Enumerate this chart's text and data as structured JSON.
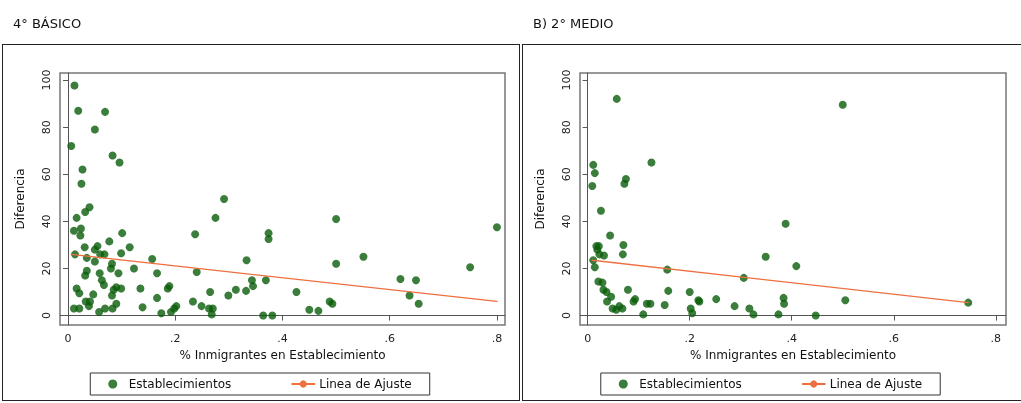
{
  "chart_data": [
    {
      "type": "scatter",
      "title": "4° BÁSICO",
      "xlabel": "% Inmigrantes en Establecimiento",
      "ylabel": "Diferencia",
      "xlim": [
        -0.015,
        0.815
      ],
      "ylim": [
        -4,
        103
      ],
      "xticks": [
        {
          "value": 0,
          "label": "0"
        },
        {
          "value": 0.2,
          "label": ".2"
        },
        {
          "value": 0.4,
          "label": ".4"
        },
        {
          "value": 0.6,
          "label": ".6"
        },
        {
          "value": 0.8,
          "label": ".8"
        }
      ],
      "yticks": [
        0,
        20,
        40,
        60,
        80,
        100
      ],
      "legend": "bottom",
      "marker": "circle",
      "series": [
        {
          "name": "Establecimientos",
          "color": "#0a5c0a",
          "x": [
            0.012,
            0.019,
            0.069,
            0.05,
            0.006,
            0.083,
            0.096,
            0.027,
            0.025,
            0.04,
            0.032,
            0.016,
            0.011,
            0.024,
            0.023,
            0.101,
            0.077,
            0.055,
            0.05,
            0.115,
            0.031,
            0.013,
            0.068,
            0.099,
            0.035,
            0.05,
            0.06,
            0.082,
            0.08,
            0.035,
            0.032,
            0.059,
            0.094,
            0.123,
            0.063,
            0.067,
            0.016,
            0.021,
            0.09,
            0.099,
            0.085,
            0.082,
            0.047,
            0.033,
            0.041,
            0.039,
            0.09,
            0.011,
            0.021,
            0.058,
            0.069,
            0.083,
            0.135,
            0.139,
            0.157,
            0.166,
            0.166,
            0.174,
            0.186,
            0.189,
            0.192,
            0.198,
            0.202,
            0.237,
            0.24,
            0.233,
            0.249,
            0.265,
            0.263,
            0.27,
            0.268,
            0.275,
            0.291,
            0.299,
            0.313,
            0.333,
            0.332,
            0.343,
            0.345,
            0.369,
            0.374,
            0.374,
            0.364,
            0.381,
            0.426,
            0.45,
            0.467,
            0.488,
            0.493,
            0.5,
            0.5,
            0.551,
            0.62,
            0.649,
            0.637,
            0.654,
            0.75,
            0.8
          ],
          "values": [
            97.7,
            87,
            86.5,
            79,
            72,
            68,
            65,
            62,
            56,
            46,
            44,
            41.5,
            36,
            37,
            34,
            35,
            31.5,
            29.5,
            28,
            29,
            29,
            26,
            26,
            26.5,
            24.5,
            23,
            26,
            22,
            20,
            19,
            17,
            18,
            18,
            20,
            15,
            13,
            11.5,
            9.5,
            12,
            11.5,
            11,
            8.5,
            9,
            6,
            6,
            4,
            5,
            3,
            3,
            1.5,
            3,
            3,
            11.5,
            3.5,
            24,
            18,
            7.5,
            1,
            11.5,
            12.5,
            1.5,
            3,
            4,
            34.5,
            18.5,
            6,
            4,
            10,
            3,
            3,
            0.5,
            41.5,
            49.5,
            8.5,
            11,
            23.5,
            10.5,
            15,
            12.5,
            15,
            35,
            32.5,
            0,
            0,
            10,
            2.5,
            2,
            6,
            5,
            41,
            22,
            25,
            15.5,
            15,
            8.5,
            5,
            20.5,
            37.5
          ]
        },
        {
          "name": "Linea de Ajuste",
          "type": "line",
          "color": "#ee6f3f",
          "marker": "none",
          "line_style": "solid",
          "x": [
            0.006,
            0.8
          ],
          "values": [
            26,
            6
          ]
        }
      ]
    },
    {
      "type": "scatter",
      "title": "B) 2° MEDIO",
      "xlabel": "% Inmigrantes en Establecimiento",
      "ylabel": "Diferencia",
      "xlim": [
        -0.015,
        0.82
      ],
      "ylim": [
        -4,
        103
      ],
      "xticks": [
        {
          "value": 0,
          "label": "0"
        },
        {
          "value": 0.2,
          "label": ".2"
        },
        {
          "value": 0.4,
          "label": ".4"
        },
        {
          "value": 0.6,
          "label": ".6"
        },
        {
          "value": 0.8,
          "label": ".8"
        }
      ],
      "yticks": [
        0,
        20,
        40,
        60,
        80,
        100
      ],
      "legend": "bottom",
      "marker": "circle",
      "series": [
        {
          "name": "Establecimientos",
          "color": "#0a5c0a",
          "x": [
            0.057,
            0.011,
            0.014,
            0.009,
            0.125,
            0.075,
            0.072,
            0.026,
            0.044,
            0.017,
            0.022,
            0.019,
            0.023,
            0.032,
            0.07,
            0.069,
            0.011,
            0.014,
            0.156,
            0.021,
            0.029,
            0.031,
            0.079,
            0.037,
            0.046,
            0.038,
            0.049,
            0.056,
            0.062,
            0.068,
            0.093,
            0.09,
            0.116,
            0.123,
            0.109,
            0.151,
            0.158,
            0.2,
            0.202,
            0.205,
            0.217,
            0.219,
            0.252,
            0.288,
            0.306,
            0.317,
            0.325,
            0.349,
            0.388,
            0.5,
            0.409,
            0.384,
            0.385,
            0.374,
            0.447,
            0.505,
            0.746
          ],
          "values": [
            92,
            64,
            60.5,
            55,
            65,
            58,
            56,
            44.5,
            34,
            29.5,
            29.5,
            28,
            26,
            25.5,
            30,
            26,
            23.5,
            20.5,
            19.5,
            14.5,
            14,
            11,
            11,
            10,
            8,
            6,
            3,
            2.5,
            4,
            3,
            7,
            6,
            5,
            5,
            0.5,
            4.5,
            10.5,
            10,
            3,
            1,
            6.5,
            6,
            7,
            4,
            16,
            3,
            0.5,
            25,
            39,
            89.5,
            21,
            7.5,
            5,
            0.5,
            0,
            6.5,
            5.5
          ]
        },
        {
          "name": "Linea de Ajuste",
          "type": "line",
          "color": "#ee6f3f",
          "marker": "none",
          "line_style": "solid",
          "x": [
            0.009,
            0.746
          ],
          "values": [
            23.5,
            5.5
          ]
        }
      ]
    }
  ]
}
